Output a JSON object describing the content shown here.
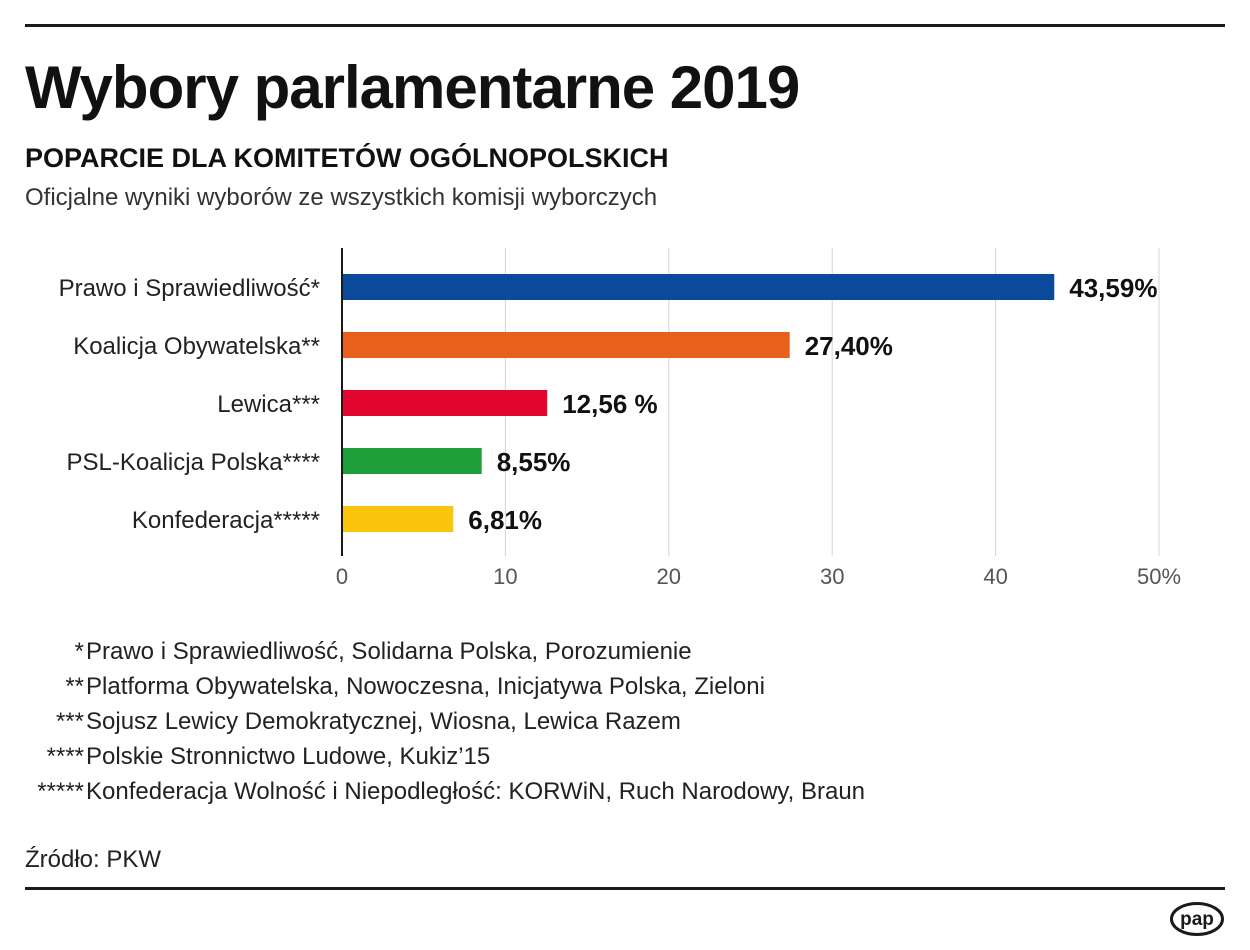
{
  "header": {
    "title": "Wybory parlamentarne 2019",
    "subtitle": "POPARCIE DLA KOMITETÓW OGÓLNOPOLSKICH",
    "description": "Oficjalne wyniki wyborów ze wszystkich komisji wyborczych"
  },
  "chart_data": {
    "type": "bar",
    "orientation": "horizontal",
    "title": "POPARCIE DLA KOMITETÓW OGÓLNOPOLSKICH",
    "categories": [
      "Prawo i Sprawiedliwość*",
      "Koalicja Obywatelska**",
      "Lewica***",
      "PSL-Koalicja Polska****",
      "Konfederacja*****"
    ],
    "values": [
      43.59,
      27.4,
      12.56,
      8.55,
      6.81
    ],
    "value_labels": [
      "43,59%",
      "27,40%",
      "12,56 %",
      "8,55%",
      "6,81%"
    ],
    "colors": [
      "#0b4a9b",
      "#e8611c",
      "#e2062f",
      "#1e9e38",
      "#fbc50c"
    ],
    "xlim": [
      0,
      50
    ],
    "x_ticks": [
      0,
      10,
      20,
      30,
      40,
      50
    ],
    "x_tick_labels": [
      "0",
      "10",
      "20",
      "30",
      "40",
      "50%"
    ],
    "xlabel": "",
    "ylabel": "",
    "grid": true
  },
  "footnotes": [
    {
      "mark": "*",
      "text": "Prawo i Sprawiedliwość, Solidarna Polska, Porozumienie"
    },
    {
      "mark": "**",
      "text": "Platforma Obywatelska, Nowoczesna, Inicjatywa Polska, Zieloni"
    },
    {
      "mark": "***",
      "text": "Sojusz Lewicy Demokratycznej, Wiosna, Lewica Razem"
    },
    {
      "mark": "****",
      "text": "Polskie Stronnictwo Ludowe, Kukiz’15"
    },
    {
      "mark": "*****",
      "text": "Konfederacja Wolność i Niepodległość: KORWiN, Ruch Narodowy, Braun"
    }
  ],
  "source": "Źródło: PKW",
  "logo": {
    "name": "pap-logo",
    "text": "pap"
  }
}
